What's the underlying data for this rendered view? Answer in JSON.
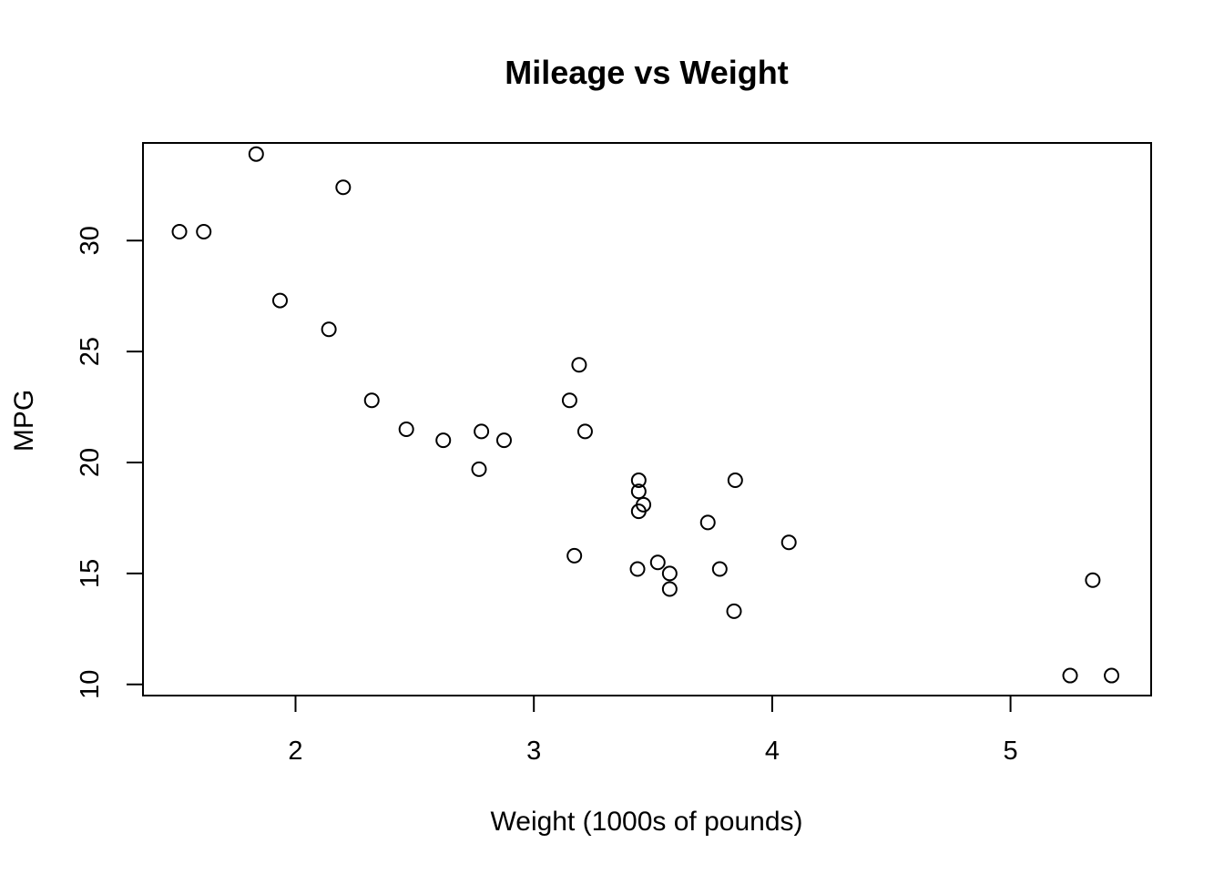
{
  "chart_data": {
    "type": "scatter",
    "title": "Mileage vs Weight",
    "xlabel": "Weight (1000s of pounds)",
    "ylabel": "MPG",
    "xlim": [
      1.36,
      5.59
    ],
    "ylim": [
      9.5,
      34.4
    ],
    "xticks": [
      2,
      3,
      4,
      5
    ],
    "yticks": [
      10,
      15,
      20,
      25,
      30
    ],
    "grid": false,
    "legend": "none",
    "marker": "open-circle",
    "points": [
      {
        "x": 2.62,
        "y": 21.0
      },
      {
        "x": 2.875,
        "y": 21.0
      },
      {
        "x": 2.32,
        "y": 22.8
      },
      {
        "x": 3.215,
        "y": 21.4
      },
      {
        "x": 3.44,
        "y": 18.7
      },
      {
        "x": 3.46,
        "y": 18.1
      },
      {
        "x": 3.57,
        "y": 14.3
      },
      {
        "x": 3.19,
        "y": 24.4
      },
      {
        "x": 3.15,
        "y": 22.8
      },
      {
        "x": 3.44,
        "y": 19.2
      },
      {
        "x": 3.44,
        "y": 17.8
      },
      {
        "x": 4.07,
        "y": 16.4
      },
      {
        "x": 3.73,
        "y": 17.3
      },
      {
        "x": 3.78,
        "y": 15.2
      },
      {
        "x": 5.25,
        "y": 10.4
      },
      {
        "x": 5.424,
        "y": 10.4
      },
      {
        "x": 5.345,
        "y": 14.7
      },
      {
        "x": 2.2,
        "y": 32.4
      },
      {
        "x": 1.615,
        "y": 30.4
      },
      {
        "x": 1.835,
        "y": 33.9
      },
      {
        "x": 2.465,
        "y": 21.5
      },
      {
        "x": 3.52,
        "y": 15.5
      },
      {
        "x": 3.435,
        "y": 15.2
      },
      {
        "x": 3.84,
        "y": 13.3
      },
      {
        "x": 3.845,
        "y": 19.2
      },
      {
        "x": 1.935,
        "y": 27.3
      },
      {
        "x": 2.14,
        "y": 26.0
      },
      {
        "x": 1.513,
        "y": 30.4
      },
      {
        "x": 3.17,
        "y": 15.8
      },
      {
        "x": 2.77,
        "y": 19.7
      },
      {
        "x": 3.57,
        "y": 15.0
      },
      {
        "x": 2.78,
        "y": 21.4
      }
    ]
  }
}
